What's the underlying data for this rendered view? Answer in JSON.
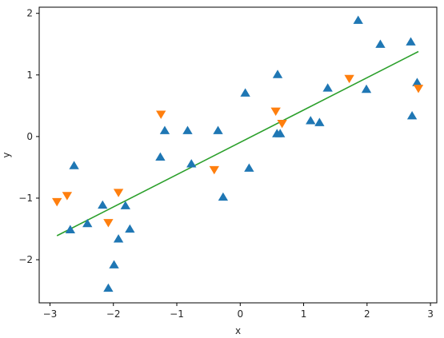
{
  "chart_data": {
    "type": "scatter",
    "xlabel": "x",
    "ylabel": "y",
    "xlim": [
      -3.17,
      3.1
    ],
    "ylim": [
      -2.7,
      2.1
    ],
    "xticks": [
      -3,
      -2,
      -1,
      0,
      1,
      2,
      3
    ],
    "yticks": [
      -2,
      -1,
      0,
      1,
      2
    ],
    "grid": false,
    "legend": "none",
    "series": [
      {
        "marker": "triangle-up",
        "color": "#1f77b4",
        "points": [
          [
            -2.68,
            -1.52
          ],
          [
            -2.62,
            -0.48
          ],
          [
            -2.41,
            -1.42
          ],
          [
            -2.17,
            -1.12
          ],
          [
            -2.08,
            -2.47
          ],
          [
            -1.99,
            -2.09
          ],
          [
            -1.92,
            -1.67
          ],
          [
            -1.81,
            -1.13
          ],
          [
            -1.74,
            -1.51
          ],
          [
            -1.26,
            -0.34
          ],
          [
            -1.19,
            0.09
          ],
          [
            -0.83,
            0.09
          ],
          [
            -0.77,
            -0.45
          ],
          [
            -0.35,
            0.09
          ],
          [
            -0.27,
            -0.99
          ],
          [
            0.08,
            0.7
          ],
          [
            0.14,
            -0.52
          ],
          [
            0.58,
            0.04
          ],
          [
            0.59,
            1.0
          ],
          [
            0.63,
            0.04
          ],
          [
            1.11,
            0.25
          ],
          [
            1.25,
            0.22
          ],
          [
            1.38,
            0.78
          ],
          [
            1.86,
            1.88
          ],
          [
            1.99,
            0.76
          ],
          [
            2.21,
            1.49
          ],
          [
            2.69,
            1.53
          ],
          [
            2.71,
            0.33
          ],
          [
            2.79,
            0.87
          ]
        ]
      },
      {
        "marker": "triangle-down",
        "color": "#ff7f0e",
        "points": [
          [
            -2.89,
            -1.05
          ],
          [
            -2.73,
            -0.95
          ],
          [
            -2.08,
            -1.39
          ],
          [
            -1.92,
            -0.9
          ],
          [
            -1.25,
            0.37
          ],
          [
            -0.41,
            -0.53
          ],
          [
            0.56,
            0.42
          ],
          [
            0.66,
            0.22
          ],
          [
            1.72,
            0.95
          ],
          [
            2.81,
            0.79
          ]
        ]
      }
    ],
    "fit_line": {
      "color": "#2ca02c",
      "x": [
        -2.89,
        2.81
      ],
      "y": [
        -1.61,
        1.38
      ]
    }
  }
}
